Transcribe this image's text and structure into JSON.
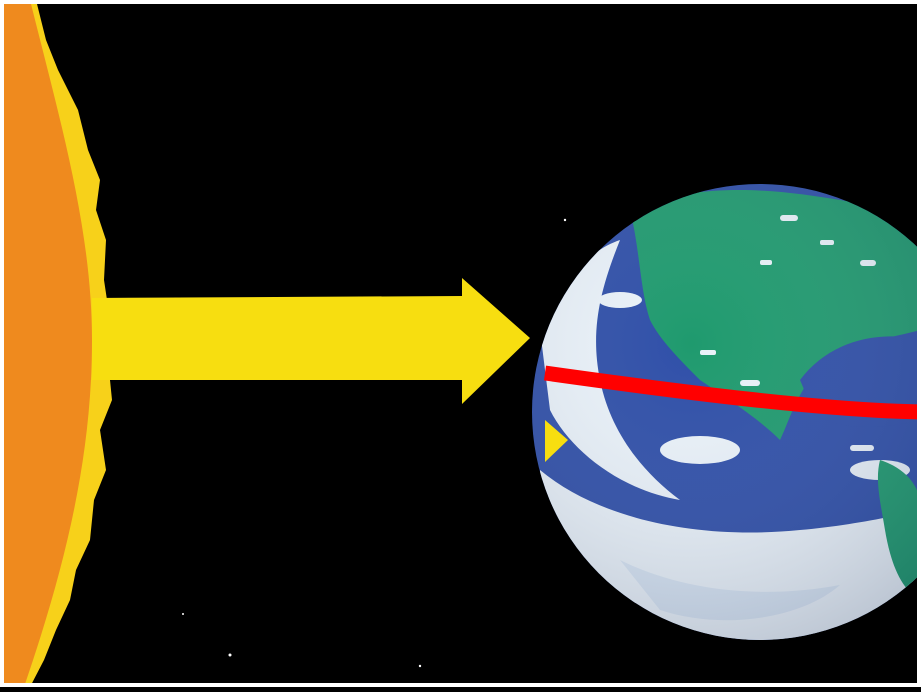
{
  "colors": {
    "space": "#000000",
    "sun_fill": "#ef8a1e",
    "sun_rim": "#f7d11a",
    "sunlight_arrow": "#f7de10",
    "earth_ocean": "#2f4fa8",
    "earth_land": "#1f9a6e",
    "earth_clouds": "#e9f1f8",
    "equator_line": "#ff0000",
    "frame": "#ffffff"
  },
  "icons": {
    "sun": "sun-icon",
    "earth": "earth-globe-icon",
    "arrow": "sunlight-arrow-icon"
  }
}
